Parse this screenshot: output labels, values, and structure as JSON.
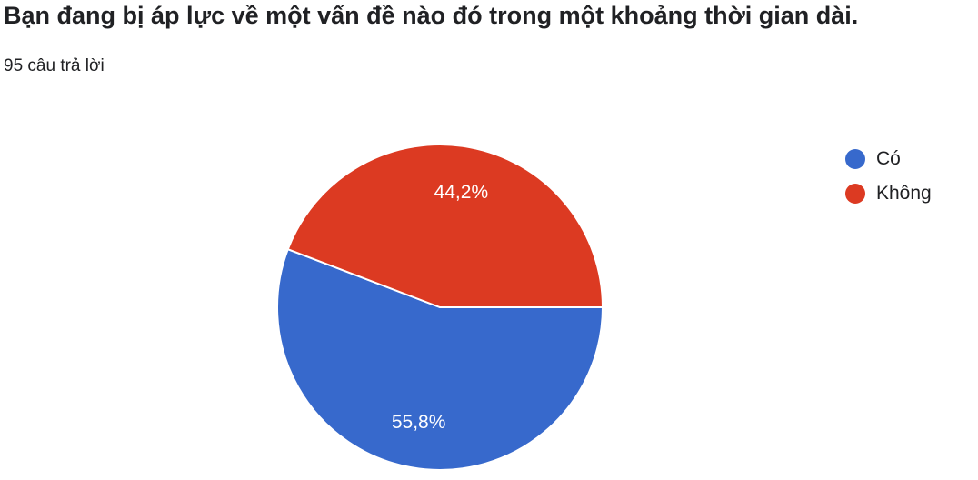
{
  "title": "Bạn đang bị áp lực về một vấn đề nào đó trong một khoảng thời gian dài.",
  "response_count": "95 câu trả lời",
  "chart_data": {
    "type": "pie",
    "legend_position": "right",
    "slices": [
      {
        "name": "Có",
        "value": 55.8,
        "label": "55,8%",
        "color": "#3769cc"
      },
      {
        "name": "Không",
        "value": 44.2,
        "label": "44,2%",
        "color": "#dc3a22"
      }
    ]
  }
}
